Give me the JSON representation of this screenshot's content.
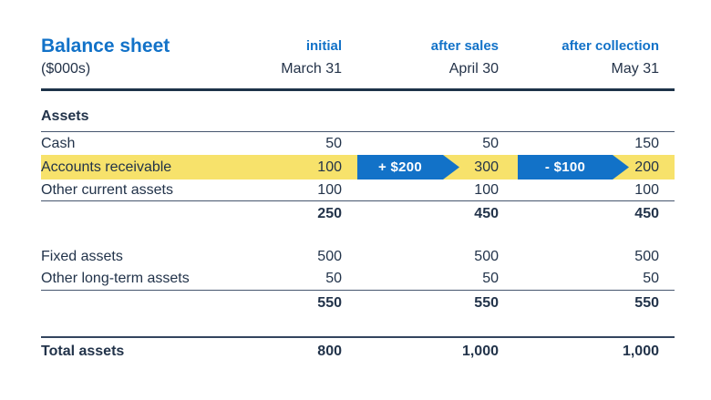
{
  "colors": {
    "accent_blue": "#1272c8",
    "highlight_yellow": "#f7e26b",
    "ink": "#22334a",
    "rule_dark": "#1d3349",
    "arrow_text": "#ffffff"
  },
  "chart_data": {
    "type": "table",
    "title": "Balance sheet",
    "subtitle": "($000s)",
    "columns": [
      {
        "label": "initial",
        "date": "March 31"
      },
      {
        "label": "after sales",
        "date": "April 30"
      },
      {
        "label": "after collection",
        "date": "May 31"
      }
    ],
    "section": "Assets",
    "rows": [
      {
        "label": "Cash",
        "values": [
          "50",
          "50",
          "150"
        ]
      },
      {
        "label": "Accounts receivable",
        "values": [
          "100",
          "300",
          "200"
        ],
        "highlight": true
      },
      {
        "label": "Other current assets",
        "values": [
          "100",
          "100",
          "100"
        ]
      },
      {
        "label": "",
        "values": [
          "250",
          "450",
          "450"
        ],
        "style": "subtotal"
      },
      {
        "label": "Fixed assets",
        "values": [
          "500",
          "500",
          "500"
        ]
      },
      {
        "label": "Other long-term assets",
        "values": [
          "50",
          "50",
          "50"
        ]
      },
      {
        "label": "",
        "values": [
          "550",
          "550",
          "550"
        ],
        "style": "subtotal"
      },
      {
        "label": "Total assets",
        "values": [
          "800",
          "1,000",
          "1,000"
        ],
        "style": "total"
      }
    ],
    "annotations": [
      {
        "text": "+ $200",
        "row": "Accounts receivable",
        "between": [
          "initial",
          "after sales"
        ]
      },
      {
        "text": "- $100",
        "row": "Accounts receivable",
        "between": [
          "after sales",
          "after collection"
        ]
      }
    ]
  }
}
